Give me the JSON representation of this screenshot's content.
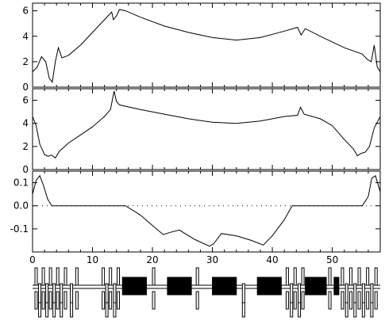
{
  "chart_data": [
    {
      "type": "line",
      "title": "",
      "xlabel": "",
      "ylabel": "",
      "xlim": [
        0,
        58
      ],
      "ylim": [
        0,
        6.6
      ],
      "yticks": [
        0,
        2,
        4,
        6
      ],
      "ytick_labels": [
        "0",
        "2",
        "4",
        "6"
      ],
      "series": [
        {
          "x": [
            0,
            0.8,
            1.5,
            2.2,
            2.8,
            3.3,
            3.8,
            4.3,
            4.9,
            6,
            8,
            10,
            12,
            13.2,
            13.5,
            14.0,
            14.5,
            15.5,
            18,
            22,
            26,
            30,
            34,
            38,
            42,
            44.2,
            44.8,
            45.5,
            48,
            52,
            55,
            55.8,
            56.5,
            57.0,
            57.5,
            58
          ],
          "y": [
            1.2,
            1.6,
            2.4,
            2.0,
            0.7,
            0.4,
            2.0,
            3.1,
            2.3,
            2.5,
            3.3,
            4.3,
            5.3,
            5.9,
            5.3,
            5.6,
            6.1,
            6.0,
            5.5,
            4.8,
            4.3,
            3.9,
            3.7,
            3.9,
            4.4,
            4.7,
            4.1,
            4.6,
            4.0,
            3.1,
            2.6,
            2.2,
            2.0,
            3.3,
            1.6,
            1.2
          ]
        }
      ]
    },
    {
      "type": "line",
      "title": "",
      "xlabel": "",
      "ylabel": "",
      "xlim": [
        0,
        58
      ],
      "ylim": [
        0,
        7
      ],
      "yticks": [
        0,
        2,
        4,
        6
      ],
      "ytick_labels": [
        "0",
        "2",
        "4",
        "6"
      ],
      "series": [
        {
          "x": [
            0,
            0.6,
            1.2,
            2.0,
            2.6,
            3.2,
            3.8,
            4.5,
            6,
            8,
            10,
            12,
            13.0,
            13.6,
            14.0,
            14.5,
            18,
            22,
            26,
            30,
            34,
            38,
            42,
            44.2,
            44.7,
            45.3,
            48,
            50,
            52,
            53.5,
            54.2,
            54.8,
            55.5,
            56.2,
            57.0,
            58
          ],
          "y": [
            4.6,
            3.8,
            2.2,
            1.3,
            1.15,
            1.25,
            1.0,
            1.6,
            2.3,
            3.0,
            3.7,
            4.6,
            5.2,
            6.8,
            5.9,
            5.6,
            5.2,
            4.8,
            4.4,
            4.1,
            4.0,
            4.2,
            4.6,
            4.7,
            5.4,
            4.8,
            4.4,
            3.8,
            2.6,
            1.8,
            1.2,
            1.4,
            1.5,
            2.0,
            3.6,
            4.6
          ]
        }
      ]
    },
    {
      "type": "line",
      "title": "",
      "xlabel": "",
      "ylabel": "",
      "xlim": [
        0,
        58
      ],
      "ylim": [
        -0.2,
        0.15
      ],
      "yticks": [
        0.1,
        0.0,
        -0.1
      ],
      "ytick_labels": [
        "0.1",
        "0.0",
        "-0.1"
      ],
      "xticks": [
        0,
        10,
        20,
        30,
        40,
        50
      ],
      "xtick_labels": [
        "0",
        "10",
        "20",
        "30",
        "40",
        "50"
      ],
      "zero_line": "dotted",
      "series": [
        {
          "x": [
            0,
            0.6,
            1.2,
            1.8,
            2.5,
            3.2,
            15.5,
            18,
            20,
            21.8,
            23,
            24.5,
            27,
            29.5,
            30.2,
            31.5,
            34,
            36.5,
            38.5,
            40,
            42,
            43.3,
            55,
            56,
            56.6,
            57.2,
            58
          ],
          "y": [
            0.05,
            0.11,
            0.13,
            0.09,
            0.03,
            0.0,
            0.0,
            -0.04,
            -0.085,
            -0.125,
            -0.115,
            -0.105,
            -0.145,
            -0.175,
            -0.165,
            -0.12,
            -0.13,
            -0.15,
            -0.17,
            -0.13,
            -0.06,
            0.0,
            0.0,
            0.04,
            0.12,
            0.13,
            0.06
          ]
        }
      ]
    },
    {
      "type": "diagram",
      "xlim": [
        0,
        58
      ],
      "lattice": {
        "magnets": [
          {
            "s": 15.0,
            "len": 4.0,
            "kind": "dipole"
          },
          {
            "s": 22.5,
            "len": 4.0,
            "kind": "dipole"
          },
          {
            "s": 30.0,
            "len": 4.0,
            "kind": "dipole"
          },
          {
            "s": 37.5,
            "len": 4.0,
            "kind": "dipole"
          },
          {
            "s": 45.5,
            "len": 3.5,
            "kind": "dipole"
          },
          {
            "s": 50.3,
            "len": 0.8,
            "kind": "dipole"
          },
          {
            "s": 0.4,
            "len": 0.3,
            "kind": "quad-up"
          },
          {
            "s": 1.0,
            "len": 0.3,
            "kind": "quad-down"
          },
          {
            "s": 1.6,
            "len": 0.3,
            "kind": "quad-up"
          },
          {
            "s": 2.2,
            "len": 0.3,
            "kind": "quad-down"
          },
          {
            "s": 2.8,
            "len": 0.3,
            "kind": "quad-up"
          },
          {
            "s": 3.4,
            "len": 0.3,
            "kind": "quad-down"
          },
          {
            "s": 4.0,
            "len": 0.3,
            "kind": "quad-up"
          },
          {
            "s": 4.6,
            "len": 0.3,
            "kind": "quad-down"
          },
          {
            "s": 5.3,
            "len": 0.3,
            "kind": "quad-up"
          },
          {
            "s": 6.3,
            "len": 0.3,
            "kind": "quad-down"
          },
          {
            "s": 7.2,
            "len": 0.3,
            "kind": "quad-up"
          },
          {
            "s": 11.6,
            "len": 0.3,
            "kind": "quad-up"
          },
          {
            "s": 12.2,
            "len": 0.3,
            "kind": "quad-down"
          },
          {
            "s": 12.8,
            "len": 0.3,
            "kind": "quad-up"
          },
          {
            "s": 13.5,
            "len": 0.3,
            "kind": "quad-down"
          },
          {
            "s": 14.1,
            "len": 0.3,
            "kind": "quad-up"
          },
          {
            "s": 20.0,
            "len": 0.4,
            "kind": "quad-up"
          },
          {
            "s": 27.3,
            "len": 0.4,
            "kind": "quad-up"
          },
          {
            "s": 35.0,
            "len": 0.4,
            "kind": "quad-down"
          },
          {
            "s": 42.3,
            "len": 0.3,
            "kind": "quad-up"
          },
          {
            "s": 43.0,
            "len": 0.3,
            "kind": "quad-down"
          },
          {
            "s": 43.6,
            "len": 0.3,
            "kind": "quad-up"
          },
          {
            "s": 44.3,
            "len": 0.3,
            "kind": "quad-down"
          },
          {
            "s": 44.9,
            "len": 0.3,
            "kind": "quad-up"
          },
          {
            "s": 49.4,
            "len": 0.3,
            "kind": "quad-up"
          },
          {
            "s": 51.5,
            "len": 0.3,
            "kind": "quad-up"
          },
          {
            "s": 52.2,
            "len": 0.3,
            "kind": "quad-down"
          },
          {
            "s": 52.9,
            "len": 0.3,
            "kind": "quad-up"
          },
          {
            "s": 53.6,
            "len": 0.3,
            "kind": "quad-down"
          },
          {
            "s": 54.3,
            "len": 0.3,
            "kind": "quad-up"
          },
          {
            "s": 55.0,
            "len": 0.3,
            "kind": "quad-down"
          },
          {
            "s": 55.7,
            "len": 0.3,
            "kind": "quad-up"
          },
          {
            "s": 56.4,
            "len": 0.3,
            "kind": "quad-down"
          },
          {
            "s": 57.1,
            "len": 0.3,
            "kind": "quad-up"
          }
        ]
      }
    }
  ]
}
